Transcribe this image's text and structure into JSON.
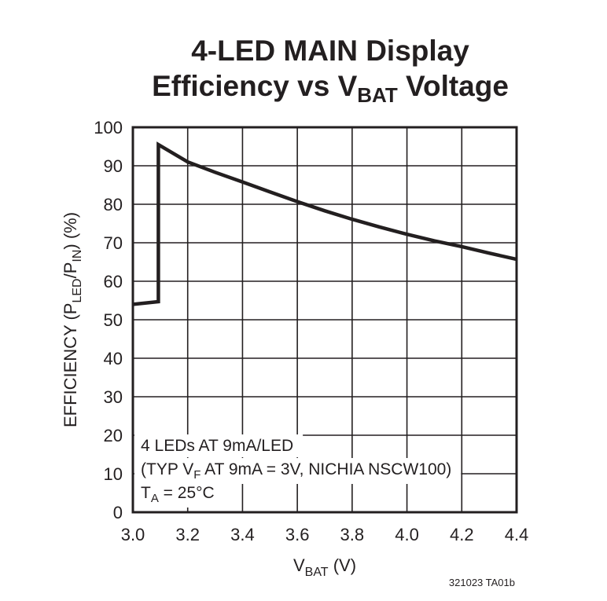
{
  "chart_data": {
    "type": "line",
    "title_line1": "4-LED MAIN Display",
    "title_line2_prefix": "Efficiency vs V",
    "title_line2_sub": "BAT",
    "title_line2_suffix": " Voltage",
    "xlabel_main": "V",
    "xlabel_sub": "BAT",
    "xlabel_suffix": " (V)",
    "ylabel_parts": [
      "EFFICIENCY (P",
      "LED",
      "/P",
      "IN",
      ") (%)"
    ],
    "xlim": [
      3.0,
      4.4
    ],
    "ylim": [
      0,
      100
    ],
    "x_ticks": [
      "3.0",
      "3.2",
      "3.4",
      "3.6",
      "3.8",
      "4.0",
      "4.2",
      "4.4"
    ],
    "y_ticks": [
      "0",
      "10",
      "20",
      "30",
      "40",
      "50",
      "60",
      "70",
      "80",
      "90",
      "100"
    ],
    "grid": true,
    "line_color": "#231f20",
    "series": [
      {
        "x": [
          3.0,
          3.093,
          3.093,
          3.2,
          3.3,
          3.4,
          3.5,
          3.6,
          3.7,
          3.8,
          3.9,
          4.0,
          4.1,
          4.2,
          4.3,
          4.4
        ],
        "y": [
          54.0,
          54.7,
          95.5,
          91.0,
          88.3,
          85.8,
          83.2,
          80.7,
          78.3,
          76.1,
          74.1,
          72.2,
          70.5,
          69.0,
          67.3,
          65.7
        ]
      }
    ],
    "annotation": {
      "line1": "4 LEDs AT 9mA/LED",
      "line2_prefix": "(TYP V",
      "line2_sub": "F",
      "line2_suffix": " AT 9mA = 3V, NICHIA NSCW100)",
      "line3_prefix": "T",
      "line3_sub": "A",
      "line3_suffix": " = 25°C"
    },
    "figure_id": "321023 TA01b"
  }
}
